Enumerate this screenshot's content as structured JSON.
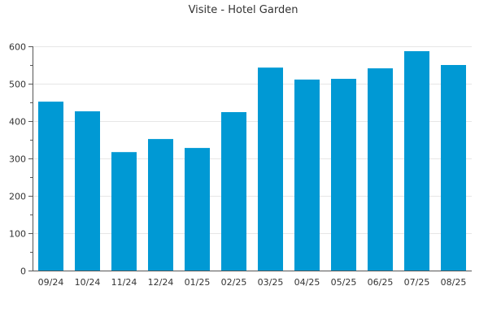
{
  "chart_data": {
    "type": "bar",
    "title": "Visite - Hotel Garden",
    "xlabel": "",
    "ylabel": "",
    "categories": [
      "09/24",
      "10/24",
      "11/24",
      "12/24",
      "01/25",
      "02/25",
      "03/25",
      "04/25",
      "05/25",
      "06/25",
      "07/25",
      "08/25"
    ],
    "values": [
      452,
      426,
      317,
      352,
      328,
      424,
      543,
      511,
      513,
      541,
      587,
      550
    ],
    "ylim": [
      0,
      600
    ],
    "yticks": [
      0,
      100,
      200,
      300,
      400,
      500,
      600
    ],
    "grid": true,
    "legend": "none",
    "bar_color": "#0099d4"
  }
}
